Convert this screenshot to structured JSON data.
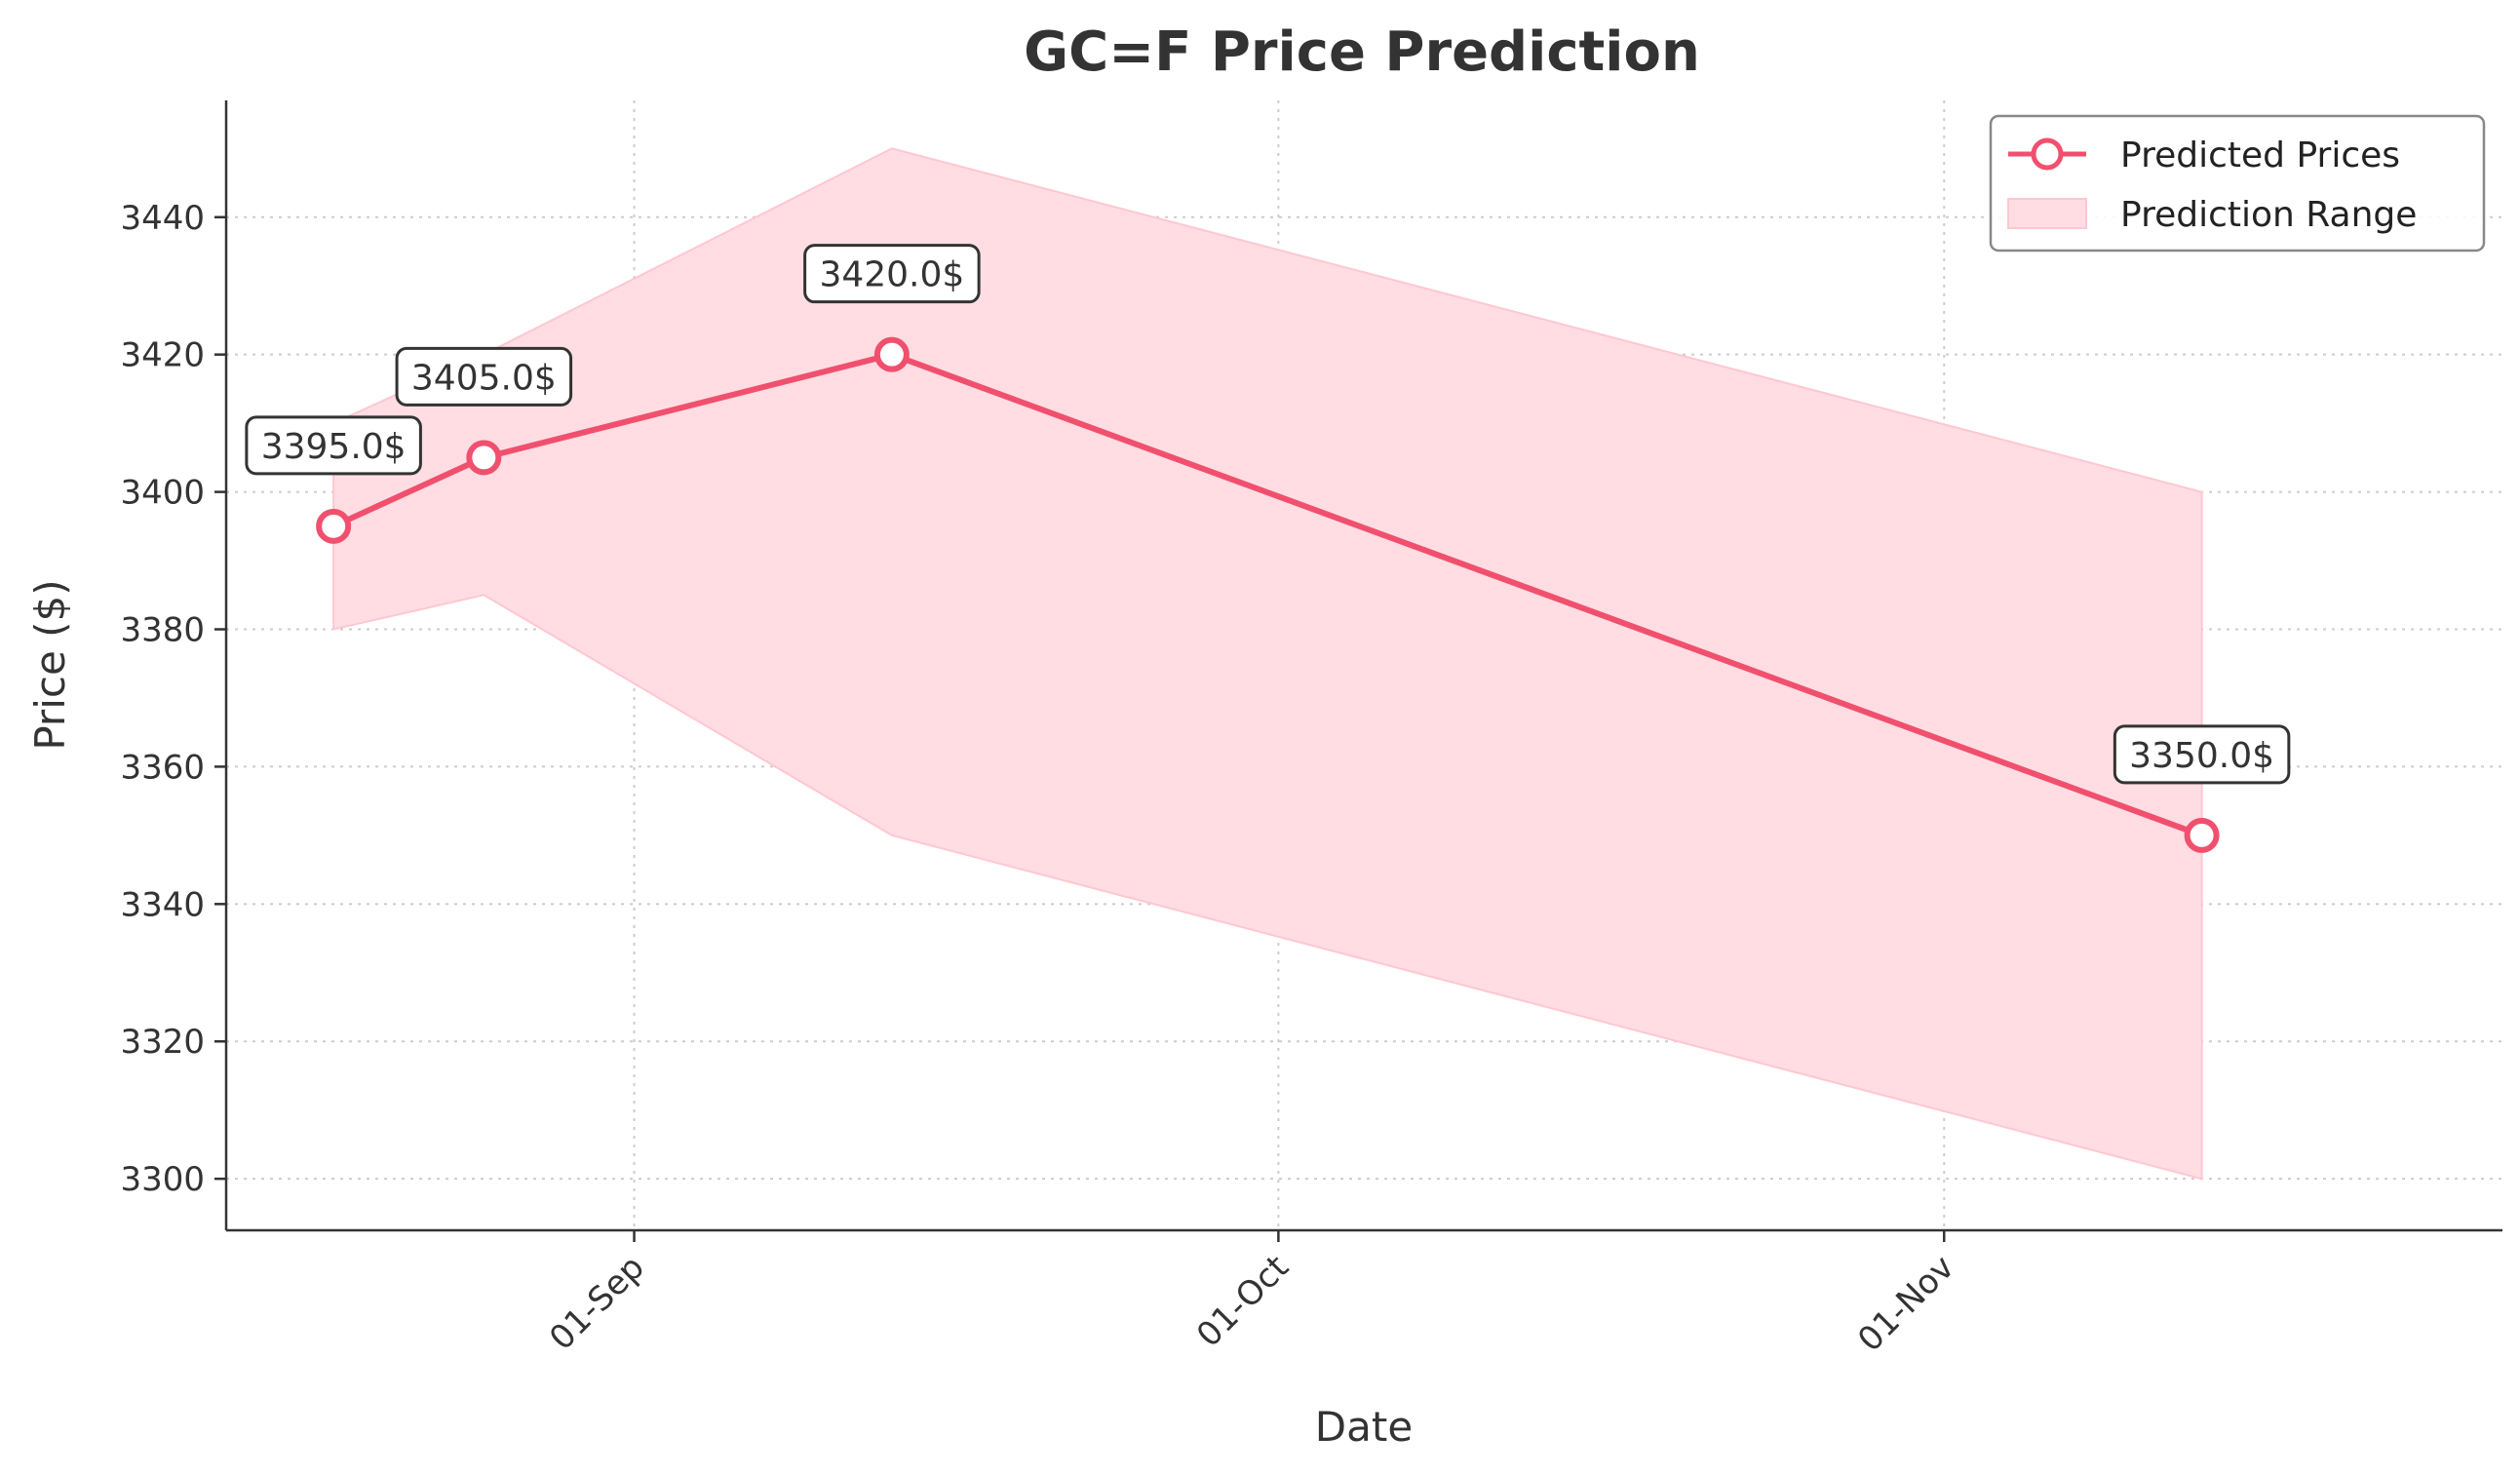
{
  "chart_data": {
    "type": "line",
    "title": "GC=F Price Prediction",
    "xlabel": "Date",
    "ylabel": "Price ($)",
    "x_tick_labels": [
      "01-Sep",
      "01-Oct",
      "01-Nov"
    ],
    "x_ticks": [
      "2025-09-01",
      "2025-10-01",
      "2025-11-01"
    ],
    "y_ticks": [
      3300,
      3320,
      3340,
      3360,
      3380,
      3400,
      3420,
      3440
    ],
    "xlim": [
      "2025-08-13",
      "2025-11-27"
    ],
    "ylim": [
      3292.5,
      3457
    ],
    "grid": true,
    "legend_position": "top-right",
    "x": [
      "2025-08-18",
      "2025-08-25",
      "2025-09-13",
      "2025-11-13"
    ],
    "series": [
      {
        "name": "Predicted Prices",
        "values": [
          3395,
          3405,
          3420,
          3350
        ],
        "color": "#f0506e"
      }
    ],
    "range": {
      "name": "Prediction Range",
      "lower": [
        3380,
        3385,
        3350,
        3300
      ],
      "upper": [
        3410,
        3420,
        3450,
        3400
      ],
      "color": "#ffdde3"
    },
    "data_labels": [
      "3395.0$",
      "3405.0$",
      "3420.0$",
      "3350.0$"
    ]
  }
}
